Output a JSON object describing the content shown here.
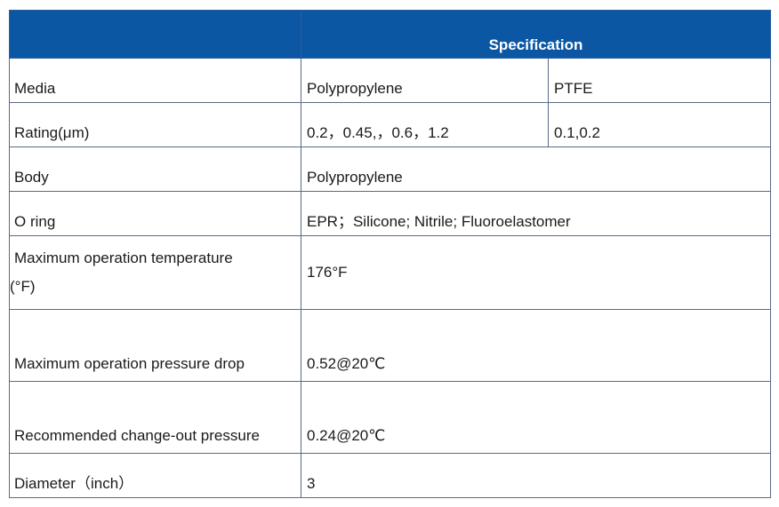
{
  "table": {
    "header": {
      "col1": "",
      "title": "Specification"
    },
    "rows": [
      {
        "label": "Media",
        "value": "Polypropylene",
        "value2": "PTFE"
      },
      {
        "label": "Rating(μm)",
        "value": "0.2，0.45,，0.6，1.2",
        "value2": "0.1,0.2"
      },
      {
        "label": "Body",
        "value": "Polypropylene"
      },
      {
        "label": "O ring",
        "value": "EPR；Silicone; Nitrile; Fluoroelastomer"
      },
      {
        "label_line1": "Maximum operation temperature",
        "label_line2": "(°F)",
        "value": "176°F"
      },
      {
        "label": "Maximum operation pressure drop",
        "value": "0.52@20℃"
      },
      {
        "label": "Recommended change-out pressure",
        "value": "0.24@20℃"
      },
      {
        "label": "Diameter（inch）",
        "value": "3"
      }
    ]
  },
  "colors": {
    "header_bg": "#0b57a4",
    "header_text": "#ffffff",
    "border": "#5a6a86"
  }
}
